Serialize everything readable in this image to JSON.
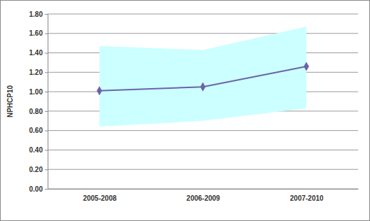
{
  "chart_data": {
    "type": "line",
    "y_label": "NPHCP10",
    "categories": [
      "2005-2008",
      "2006-2009",
      "2007-2010"
    ],
    "series": [
      {
        "values": [
          1.01,
          1.05,
          1.26
        ],
        "lower": [
          0.64,
          0.7,
          0.83
        ],
        "upper": [
          1.47,
          1.43,
          1.67
        ],
        "color": "#6b63a8",
        "marker": "diamond"
      }
    ],
    "ylim": [
      0,
      1.8
    ],
    "yticks": [
      {
        "value": 0,
        "label": "0.00"
      },
      {
        "value": 0.2,
        "label": "0.20"
      },
      {
        "value": 0.4,
        "label": "0.40"
      },
      {
        "value": 0.6,
        "label": "0.60"
      },
      {
        "value": 0.8,
        "label": "0.80"
      },
      {
        "value": 1.0,
        "label": "1.00"
      },
      {
        "value": 1.2,
        "label": "1.20"
      },
      {
        "value": 1.4,
        "label": "1.40"
      },
      {
        "value": 1.6,
        "label": "1.60"
      },
      {
        "value": 1.8,
        "label": "1.80"
      }
    ],
    "grid": true
  }
}
